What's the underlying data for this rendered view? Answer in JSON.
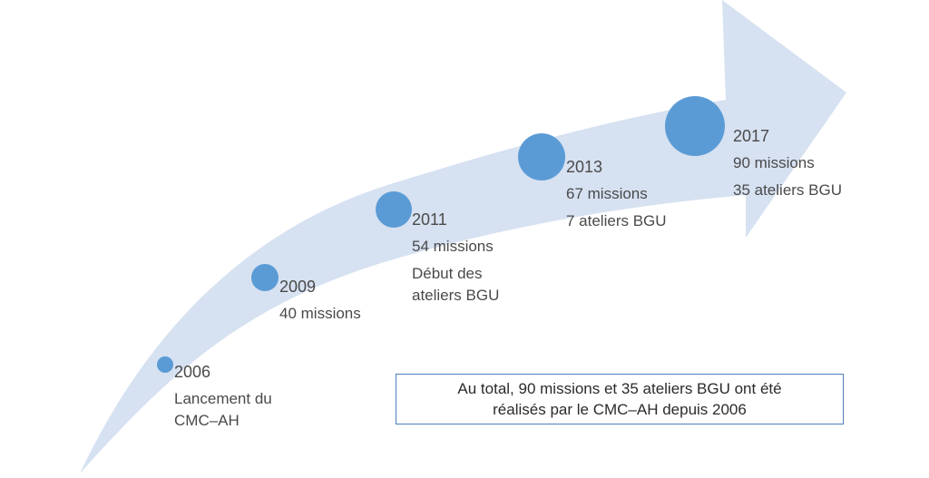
{
  "colors": {
    "arrow_fill": "#d6e1f1",
    "bubble_fill": "#5b9bd5",
    "text": "#4a4a4a",
    "box_border": "#4f7fb8"
  },
  "milestones": [
    {
      "year": "2006",
      "lines": [
        "Lancement du",
        "CMC–AH"
      ]
    },
    {
      "year": "2009",
      "lines": [
        "40 missions"
      ]
    },
    {
      "year": "2011",
      "lines": [
        "54 missions",
        "Début des",
        "ateliers BGU"
      ]
    },
    {
      "year": "2013",
      "lines": [
        "67 missions",
        "7 ateliers BGU"
      ]
    },
    {
      "year": "2017",
      "lines": [
        "90 missions",
        "35 ateliers BGU"
      ]
    }
  ],
  "summary": {
    "line1": "Au total, 90 missions et 35 ateliers BGU ont été",
    "line2": "réalisés par le CMC–AH  depuis 2006"
  }
}
